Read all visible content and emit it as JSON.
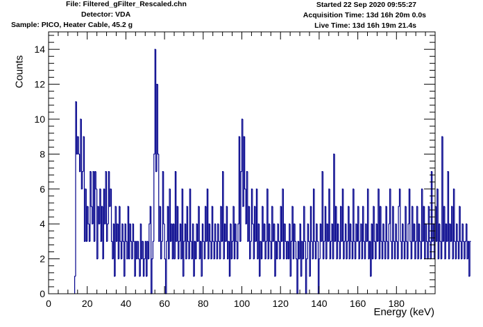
{
  "header": {
    "file": "File: Filtered_gFilter_Rescaled.chn",
    "detector": "Detector: VDA",
    "sample": "Sample: PICO, Heater Cable, 45.2 g",
    "started": "Started 22 Sep 2020 09:55:27",
    "acquisition": "Acquisition Time: 13d 16h 20m 0.0s",
    "live": "Live Time: 13d 16h 19m 21.4s"
  },
  "colors": {
    "histogram": "#00008b",
    "axes": "#000000",
    "background": "#ffffff"
  },
  "chart_data": {
    "type": "bar",
    "style": "step histogram",
    "title": "",
    "xlabel": "Energy (keV)",
    "ylabel": "Counts",
    "xlim": [
      0,
      200
    ],
    "ylim": [
      0,
      15
    ],
    "x_ticks": [
      0,
      20,
      40,
      60,
      80,
      100,
      120,
      140,
      160,
      180
    ],
    "y_ticks": [
      0,
      2,
      4,
      6,
      8,
      10,
      12,
      14
    ],
    "grid": false,
    "legend": "none",
    "bin_width_keV": 0.5,
    "bin_start_keV": 13.5,
    "counts": [
      1,
      11,
      8,
      9,
      8,
      7,
      10,
      6,
      7,
      9,
      3,
      6,
      3,
      5,
      4,
      3,
      7,
      5,
      4,
      7,
      3,
      7,
      6,
      2,
      5,
      4,
      6,
      3,
      5,
      2,
      6,
      4,
      7,
      3,
      4,
      7,
      5,
      6,
      3,
      2,
      4,
      1,
      5,
      3,
      4,
      2,
      5,
      3,
      2,
      4,
      3,
      1,
      4,
      3,
      2,
      5,
      2,
      4,
      3,
      2,
      4,
      3,
      1,
      3,
      2,
      3,
      2,
      1,
      4,
      2,
      3,
      1,
      2,
      3,
      1,
      3,
      2,
      4,
      5,
      0,
      2,
      3,
      8,
      14,
      7,
      12,
      8,
      3,
      5,
      2,
      3,
      7,
      4,
      2,
      0,
      3,
      5,
      2,
      6,
      3,
      4,
      2,
      4,
      2,
      7,
      3,
      5,
      2,
      3,
      4,
      2,
      6,
      1,
      3,
      4,
      2,
      5,
      3,
      2,
      6,
      3,
      2,
      4,
      1,
      3,
      2,
      4,
      3,
      5,
      2,
      3,
      1,
      4,
      3,
      2,
      5,
      3,
      6,
      2,
      4,
      3,
      2,
      5,
      3,
      2,
      4,
      3,
      2,
      4,
      3,
      2,
      5,
      3,
      7,
      2,
      4,
      3,
      5,
      2,
      3,
      1,
      4,
      2,
      3,
      5,
      2,
      4,
      3,
      2,
      4,
      9,
      3,
      7,
      10,
      5,
      9,
      6,
      4,
      7,
      3,
      5,
      2,
      3,
      6,
      4,
      2,
      5,
      3,
      6,
      2,
      4,
      1,
      3,
      2,
      5,
      3,
      4,
      2,
      3,
      6,
      2,
      4,
      3,
      2,
      5,
      3,
      4,
      1,
      3,
      2,
      4,
      3,
      2,
      5,
      3,
      6,
      2,
      4,
      3,
      2,
      3,
      2,
      4,
      1,
      3,
      5,
      2,
      4,
      3,
      2,
      0,
      3,
      2,
      4,
      1,
      3,
      2,
      5,
      3,
      0,
      2,
      4,
      3,
      1,
      5,
      3,
      2,
      6,
      3,
      2,
      4,
      3,
      0,
      2,
      4,
      3,
      7,
      2,
      3,
      5,
      2,
      4,
      3,
      6,
      2,
      3,
      4,
      2,
      8,
      3,
      5,
      2,
      4,
      3,
      2,
      5,
      3,
      6,
      2,
      3,
      4,
      2,
      3,
      5,
      2,
      4,
      3,
      2,
      6,
      3,
      2,
      4,
      3,
      5,
      2,
      3,
      4,
      2,
      5,
      3,
      2,
      4,
      3,
      6,
      2,
      3,
      1,
      4,
      2,
      5,
      3,
      2,
      4,
      3,
      6,
      2,
      5,
      3,
      2,
      4,
      3,
      2,
      5,
      3,
      2,
      4,
      6,
      3,
      2,
      5,
      3,
      2,
      4,
      3,
      2,
      5,
      6,
      3,
      2,
      4,
      3,
      2,
      5,
      3,
      2,
      4,
      6,
      3,
      2,
      5,
      3,
      4,
      2,
      3,
      5,
      2,
      4,
      3,
      2,
      6,
      3,
      5,
      2,
      4,
      3,
      2,
      5,
      3,
      2,
      7,
      3,
      4,
      2,
      5,
      3,
      6,
      2,
      4,
      3,
      2,
      9,
      3,
      5,
      2,
      4,
      3,
      7,
      2,
      4,
      3,
      5,
      2,
      6,
      3,
      2,
      4,
      3,
      2,
      5,
      3,
      2,
      4,
      3,
      2,
      3,
      4,
      2,
      3,
      1,
      3
    ]
  }
}
